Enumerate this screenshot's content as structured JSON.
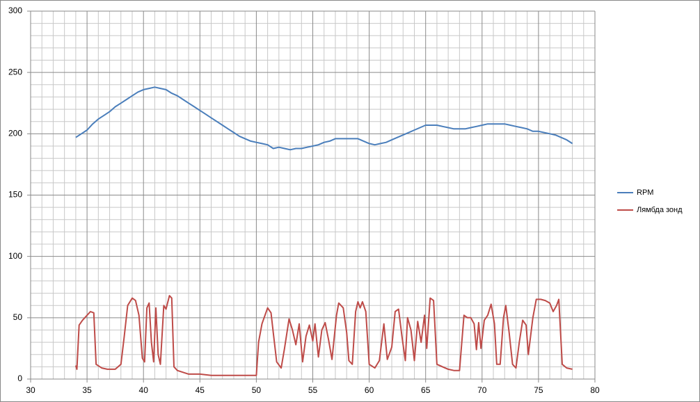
{
  "chart_data": {
    "type": "line",
    "xlim": [
      30,
      80
    ],
    "xticks": [
      30,
      35,
      40,
      45,
      50,
      55,
      60,
      65,
      70,
      75,
      80
    ],
    "ylim": [
      0,
      300
    ],
    "yticks": [
      0,
      50,
      100,
      150,
      200,
      250,
      300
    ],
    "xgrid": [
      31,
      32,
      33,
      34,
      36,
      37,
      38,
      39,
      41,
      42,
      43,
      44,
      46,
      47,
      48,
      49,
      51,
      52,
      53,
      54,
      56,
      57,
      58,
      59,
      61,
      62,
      63,
      64,
      66,
      67,
      68,
      69,
      71,
      72,
      73,
      74,
      76,
      77,
      78,
      79
    ],
    "ygrid": [
      10,
      20,
      30,
      40,
      60,
      70,
      80,
      90,
      110,
      120,
      130,
      140,
      160,
      170,
      180,
      190,
      210,
      220,
      230,
      240,
      260,
      270,
      280,
      290
    ],
    "grid": true,
    "legend": "right",
    "series": [
      {
        "name": "RPM",
        "color": "#4a7ebb",
        "x": [
          34,
          34.5,
          35,
          35.5,
          36,
          36.5,
          37,
          37.5,
          38,
          38.5,
          39,
          39.5,
          40,
          40.5,
          41,
          41.5,
          42,
          42.5,
          43,
          43.5,
          44,
          44.5,
          45,
          45.5,
          46,
          46.5,
          47,
          47.5,
          48,
          48.5,
          49,
          49.5,
          50,
          50.5,
          51,
          51.5,
          52,
          52.5,
          53,
          53.5,
          54,
          54.5,
          55,
          55.5,
          56,
          56.5,
          57,
          57.5,
          58,
          58.5,
          59,
          59.5,
          60,
          60.5,
          61,
          61.5,
          62,
          62.5,
          63,
          63.5,
          64,
          64.5,
          65,
          65.5,
          66,
          66.5,
          67,
          67.5,
          68,
          68.5,
          69,
          69.5,
          70,
          70.5,
          71,
          71.5,
          72,
          72.5,
          73,
          73.5,
          74,
          74.5,
          75,
          75.5,
          76,
          76.5,
          77,
          77.5,
          78
        ],
        "values": [
          197,
          200,
          203,
          208,
          212,
          215,
          218,
          222,
          225,
          228,
          231,
          234,
          236,
          237,
          238,
          237,
          236,
          233,
          231,
          228,
          225,
          222,
          219,
          216,
          213,
          210,
          207,
          204,
          201,
          198,
          196,
          194,
          193,
          192,
          191,
          188,
          189,
          188,
          187,
          188,
          188,
          189,
          190,
          191,
          193,
          194,
          196,
          196,
          196,
          196,
          196,
          194,
          192,
          191,
          192,
          193,
          195,
          197,
          199,
          201,
          203,
          205,
          207,
          207,
          207,
          206,
          205,
          204,
          204,
          204,
          205,
          206,
          207,
          208,
          208,
          208,
          208,
          207,
          206,
          205,
          204,
          202,
          202,
          201,
          200,
          199,
          197,
          195,
          192
        ]
      },
      {
        "name": "Лямбда зонд",
        "color": "#be4b48",
        "x": [
          34,
          34.1,
          34.3,
          34.6,
          35,
          35.3,
          35.6,
          35.8,
          36.3,
          36.8,
          37.5,
          38,
          38.3,
          38.6,
          39,
          39.3,
          39.6,
          39.9,
          40.1,
          40.3,
          40.5,
          40.7,
          40.9,
          41.1,
          41.3,
          41.5,
          41.8,
          42,
          42.3,
          42.5,
          42.7,
          43,
          44,
          45,
          46,
          47,
          48,
          49,
          50,
          50.2,
          50.5,
          51,
          51.3,
          51.5,
          51.8,
          52.2,
          52.5,
          52.9,
          53.2,
          53.5,
          53.8,
          54.1,
          54.4,
          54.7,
          55,
          55.2,
          55.5,
          55.8,
          56.1,
          56.4,
          56.7,
          57.1,
          57.3,
          57.7,
          58,
          58.2,
          58.5,
          58.8,
          59,
          59.2,
          59.4,
          59.7,
          60,
          60.5,
          60.9,
          61.3,
          61.6,
          62,
          62.3,
          62.6,
          62.9,
          63.2,
          63.4,
          63.7,
          64,
          64.3,
          64.6,
          64.9,
          65.1,
          65.4,
          65.7,
          66,
          66.5,
          67,
          67.5,
          68,
          68.4,
          68.7,
          69,
          69.3,
          69.5,
          69.7,
          69.9,
          70.2,
          70.5,
          70.8,
          71.1,
          71.3,
          71.6,
          71.9,
          72.1,
          72.4,
          72.7,
          73,
          73.3,
          73.6,
          73.9,
          74.1,
          74.5,
          74.8,
          75.2,
          75.6,
          76,
          76.3,
          76.6,
          76.8,
          77.1,
          77.5,
          78
        ],
        "values": [
          11,
          8,
          44,
          48,
          52,
          55,
          54,
          12,
          9,
          8,
          8,
          12,
          35,
          60,
          66,
          64,
          52,
          17,
          14,
          58,
          62,
          30,
          14,
          58,
          20,
          12,
          60,
          57,
          68,
          66,
          10,
          7,
          4,
          4,
          3,
          3,
          3,
          3,
          3,
          30,
          45,
          58,
          54,
          38,
          14,
          9,
          25,
          49,
          40,
          28,
          45,
          14,
          35,
          44,
          31,
          45,
          18,
          40,
          46,
          32,
          16,
          52,
          62,
          58,
          38,
          15,
          12,
          55,
          63,
          58,
          63,
          55,
          12,
          9,
          15,
          45,
          16,
          26,
          55,
          57,
          35,
          15,
          50,
          40,
          15,
          47,
          30,
          52,
          25,
          66,
          64,
          12,
          10,
          8,
          7,
          7,
          52,
          50,
          50,
          45,
          24,
          46,
          25,
          48,
          52,
          61,
          45,
          12,
          12,
          50,
          60,
          38,
          12,
          9,
          30,
          48,
          44,
          20,
          50,
          65,
          65,
          64,
          62,
          55,
          60,
          65,
          12,
          9,
          8
        ]
      }
    ]
  }
}
